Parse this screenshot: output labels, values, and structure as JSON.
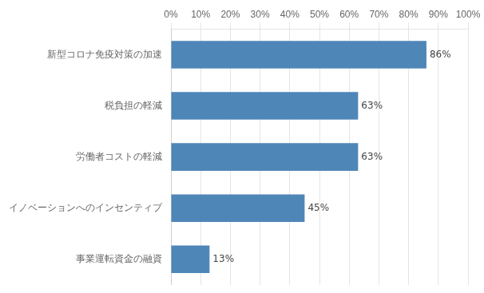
{
  "chart_data": {
    "type": "bar",
    "orientation": "horizontal",
    "categories": [
      "事業運転資金の融資",
      "イノベーションへのインセンティブ",
      "労働者コストの軽減",
      "税負担の軽減",
      "新型コロナ免疫対策の加速"
    ],
    "values": [
      13,
      45,
      63,
      63,
      86
    ],
    "value_labels": [
      "13%",
      "45%",
      "63%",
      "63%",
      "86%"
    ],
    "data_labels": true,
    "color": "#4f86b8",
    "xlim": [
      0,
      100
    ],
    "xticks": [
      {
        "value": 0,
        "label": "0%"
      },
      {
        "value": 10,
        "label": "10%"
      },
      {
        "value": 20,
        "label": "20%"
      },
      {
        "value": 30,
        "label": "30%"
      },
      {
        "value": 40,
        "label": "40%"
      },
      {
        "value": 50,
        "label": "50%"
      },
      {
        "value": 60,
        "label": "60%"
      },
      {
        "value": 70,
        "label": "70%"
      },
      {
        "value": 80,
        "label": "80%"
      },
      {
        "value": 90,
        "label": "90%"
      },
      {
        "value": 100,
        "label": "100%"
      }
    ],
    "grid": true
  }
}
